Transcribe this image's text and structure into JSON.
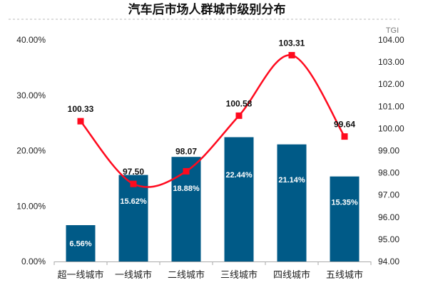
{
  "chart_data": {
    "type": "bar+line",
    "title": "汽车后市场人群城市级别分布",
    "categories": [
      "超一线城市",
      "一线城市",
      "二线城市",
      "三线城市",
      "四线城市",
      "五线城市"
    ],
    "series": [
      {
        "type": "bar",
        "axis": "left",
        "values": [
          6.56,
          15.62,
          18.88,
          22.44,
          21.14,
          15.35
        ],
        "labels": [
          "6.56%",
          "15.62%",
          "18.88%",
          "22.44%",
          "21.14%",
          "15.35%"
        ],
        "color": "#005a87"
      },
      {
        "type": "line",
        "axis": "right",
        "smooth": true,
        "values": [
          100.33,
          97.5,
          98.07,
          100.58,
          103.31,
          99.64
        ],
        "labels": [
          "100.33",
          "97.50",
          "98.07",
          "100.58",
          "103.31",
          "99.64"
        ],
        "color": "#ff0a1e"
      }
    ],
    "left_axis": {
      "ylim": [
        0,
        40
      ],
      "ticks": [
        "0.00%",
        "10.00%",
        "20.00%",
        "30.00%",
        "40.00%"
      ]
    },
    "right_axis": {
      "label": "TGI",
      "ylim": [
        94,
        104
      ],
      "ticks": [
        "94.00",
        "95.00",
        "96.00",
        "97.00",
        "98.00",
        "99.00",
        "100.00",
        "101.00",
        "102.00",
        "103.00",
        "104.00"
      ]
    },
    "grid": false,
    "legend": "none"
  }
}
